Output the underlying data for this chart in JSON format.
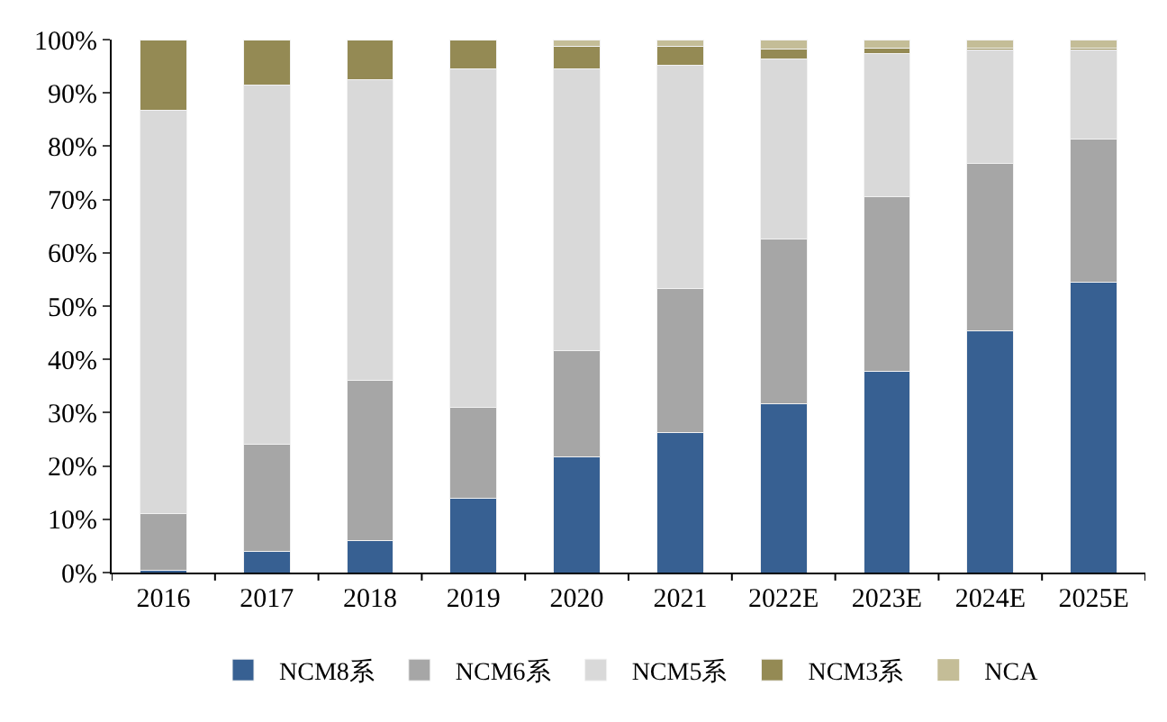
{
  "chart_data": {
    "type": "bar",
    "stacked": true,
    "categories": [
      "2016",
      "2017",
      "2018",
      "2019",
      "2020",
      "2021",
      "2022E",
      "2023E",
      "2024E",
      "2025E"
    ],
    "series": [
      {
        "name": "NCM8系",
        "color": "#376092",
        "values": [
          0.5,
          4,
          6,
          14,
          21.7,
          26.3,
          31.6,
          37.7,
          45.4,
          54.5
        ]
      },
      {
        "name": "NCM6系",
        "color": "#a6a6a6",
        "values": [
          10.5,
          20,
          30,
          17,
          20,
          27,
          31,
          32.9,
          31.3,
          26.8
        ]
      },
      {
        "name": "NCM5系",
        "color": "#d9d9d9",
        "values": [
          75.7,
          67.5,
          56.5,
          63.5,
          52.8,
          41.9,
          33.8,
          26.7,
          21.4,
          16.7
        ]
      },
      {
        "name": "NCM3系",
        "color": "#948a54",
        "values": [
          13.3,
          8.5,
          7.5,
          5.5,
          4.3,
          3.6,
          1.9,
          1.1,
          0.3,
          0.4
        ]
      },
      {
        "name": "NCA",
        "color": "#c4bd97",
        "values": [
          0,
          0,
          0,
          0,
          1.2,
          1.2,
          1.7,
          1.6,
          1.6,
          1.6
        ]
      }
    ],
    "ylim": [
      0,
      100
    ],
    "yticks": [
      {
        "value": 0,
        "label": "0%"
      },
      {
        "value": 10,
        "label": "10%"
      },
      {
        "value": 20,
        "label": "20%"
      },
      {
        "value": 30,
        "label": "30%"
      },
      {
        "value": 40,
        "label": "40%"
      },
      {
        "value": 50,
        "label": "50%"
      },
      {
        "value": 60,
        "label": "60%"
      },
      {
        "value": 70,
        "label": "70%"
      },
      {
        "value": 80,
        "label": "80%"
      },
      {
        "value": 90,
        "label": "90%"
      },
      {
        "value": 100,
        "label": "100%"
      }
    ],
    "grid": false,
    "legend": "bottom"
  }
}
